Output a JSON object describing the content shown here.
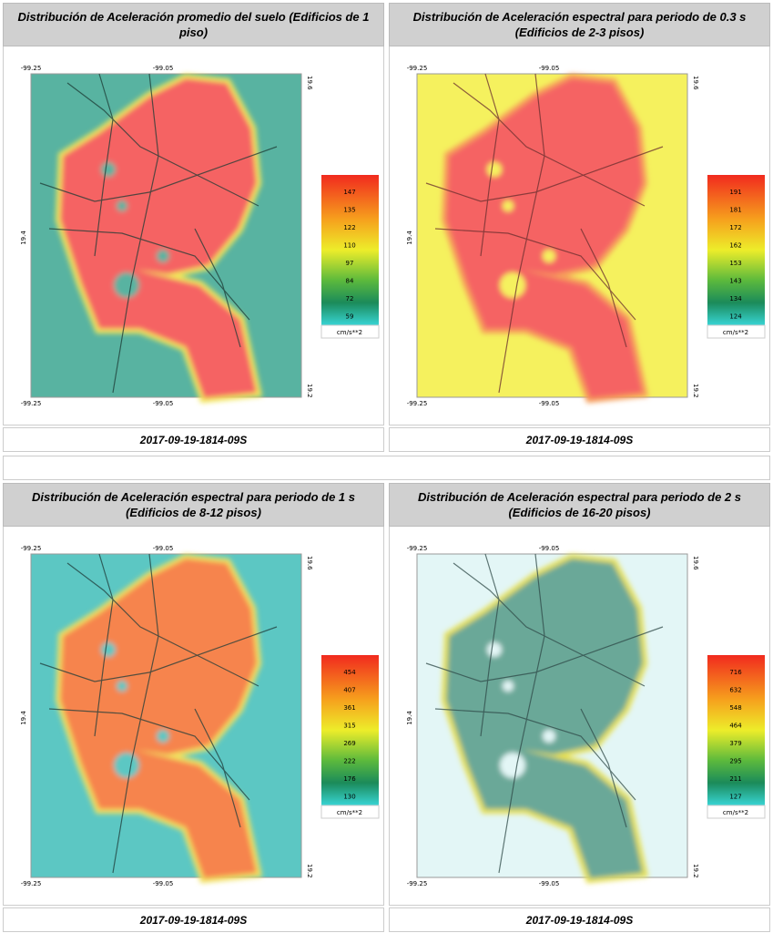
{
  "panels": [
    {
      "title": "Distribución de Aceleración promedio del suelo (Edificios de 1 piso)",
      "date": "2017-09-19-1814-09S",
      "scale": [
        147,
        135,
        122,
        110,
        97,
        84,
        72,
        59
      ]
    },
    {
      "title": "Distribución de Aceleración espectral para periodo de 0.3 s (Edificios de 2-3 pisos)",
      "date": "2017-09-19-1814-09S",
      "scale": [
        191,
        181,
        172,
        162,
        153,
        143,
        134,
        124
      ]
    },
    {
      "title": "Distribución de Aceleración espectral para periodo de 1 s (Edificios de 8-12 pisos)",
      "date": "2017-09-19-1814-09S",
      "scale": [
        454,
        407,
        361,
        315,
        269,
        222,
        176,
        130
      ]
    },
    {
      "title": "Distribución de Aceleración espectral para periodo de 2 s (Edificios de 16-20 pisos)",
      "date": "2017-09-19-1814-09S",
      "scale": [
        716,
        632,
        548,
        464,
        379,
        295,
        211,
        127
      ]
    }
  ],
  "unit": "cm/s**2",
  "lon_labels": [
    -99.25,
    -99.05
  ],
  "lat_labels": [
    19.6,
    19.4,
    19.2
  ]
}
